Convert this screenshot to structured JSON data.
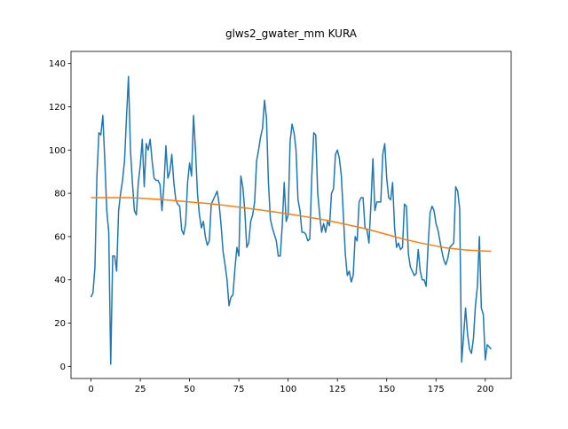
{
  "chart_data": {
    "type": "line",
    "title": "glws2_gwater_mm KURA",
    "xlim": [
      -10.15,
      213.15
    ],
    "ylim": [
      -5.6,
      145.6
    ],
    "xticks": [
      0,
      25,
      50,
      75,
      100,
      125,
      150,
      175,
      200
    ],
    "yticks": [
      0,
      20,
      40,
      60,
      80,
      100,
      120,
      140
    ],
    "series": [
      {
        "color": "#1f77b4",
        "x": [
          0,
          1,
          2,
          3,
          4,
          5,
          6,
          7,
          8,
          9,
          10,
          11,
          12,
          13,
          14,
          15,
          16,
          17,
          18,
          19,
          20,
          21,
          22,
          23,
          24,
          25,
          26,
          27,
          28,
          29,
          30,
          31,
          32,
          33,
          34,
          35,
          36,
          37,
          38,
          39,
          40,
          41,
          42,
          43,
          44,
          45,
          46,
          47,
          48,
          49,
          50,
          51,
          52,
          53,
          54,
          55,
          56,
          57,
          58,
          59,
          60,
          61,
          62,
          63,
          64,
          65,
          66,
          67,
          68,
          69,
          70,
          71,
          72,
          73,
          74,
          75,
          76,
          77,
          78,
          79,
          80,
          81,
          82,
          83,
          84,
          85,
          86,
          87,
          88,
          89,
          90,
          91,
          92,
          93,
          94,
          95,
          96,
          97,
          98,
          99,
          100,
          101,
          102,
          103,
          104,
          105,
          106,
          107,
          108,
          109,
          110,
          111,
          112,
          113,
          114,
          115,
          116,
          117,
          118,
          119,
          120,
          121,
          122,
          123,
          124,
          125,
          126,
          127,
          128,
          129,
          130,
          131,
          132,
          133,
          134,
          135,
          136,
          137,
          138,
          139,
          140,
          141,
          142,
          143,
          144,
          145,
          146,
          147,
          148,
          149,
          150,
          151,
          152,
          153,
          154,
          155,
          156,
          157,
          158,
          159,
          160,
          161,
          162,
          163,
          164,
          165,
          166,
          167,
          168,
          169,
          170,
          171,
          172,
          173,
          174,
          175,
          176,
          177,
          178,
          179,
          180,
          181,
          182,
          183,
          184,
          185,
          186,
          187,
          188,
          189,
          190,
          191,
          192,
          193,
          194,
          195,
          196,
          197,
          198,
          199,
          200,
          201,
          202,
          203
        ],
        "values": [
          32,
          34,
          46,
          88,
          108,
          107,
          116,
          95,
          72,
          62,
          1,
          51,
          51,
          44,
          72,
          80,
          86,
          95,
          115,
          134,
          100,
          85,
          72,
          70,
          85,
          93,
          105,
          83,
          103,
          100,
          105,
          95,
          87,
          86,
          86,
          84,
          72,
          84,
          102,
          87,
          90,
          98,
          85,
          77,
          75,
          74,
          63,
          61,
          66,
          85,
          94,
          88,
          116,
          100,
          80,
          70,
          64,
          67,
          60,
          56,
          58,
          75,
          77,
          79,
          81,
          75,
          65,
          53,
          47,
          40,
          28,
          32,
          33,
          45,
          55,
          51,
          88,
          83,
          72,
          55,
          57,
          67,
          70,
          76,
          95,
          100,
          106,
          110,
          123,
          115,
          85,
          68,
          64,
          61,
          58,
          51,
          51,
          65,
          85,
          67,
          70,
          104,
          112,
          108,
          100,
          77,
          72,
          62,
          62,
          61,
          58,
          59,
          88,
          108,
          107,
          80,
          70,
          62,
          66,
          62,
          67,
          65,
          80,
          82,
          98,
          100,
          96,
          88,
          70,
          52,
          42,
          44,
          39,
          42,
          60,
          58,
          76,
          78,
          78,
          64,
          63,
          57,
          75,
          96,
          72,
          76,
          76,
          76,
          98,
          103,
          87,
          78,
          77,
          85,
          64,
          55,
          57,
          54,
          55,
          75,
          74,
          52,
          46,
          44,
          42,
          43,
          54,
          44,
          40,
          40,
          37,
          56,
          71,
          74,
          72,
          66,
          63,
          58,
          53,
          49,
          47,
          50,
          55,
          56,
          57,
          83,
          81,
          73,
          2,
          14,
          27,
          15,
          8,
          6,
          13,
          28,
          37,
          60,
          27,
          24,
          3,
          10,
          9,
          8
        ]
      },
      {
        "color": "#ff7f0e",
        "x": [
          0,
          10,
          20,
          30,
          40,
          50,
          60,
          70,
          80,
          90,
          100,
          110,
          120,
          130,
          140,
          150,
          160,
          170,
          180,
          190,
          200,
          203
        ],
        "values": [
          78,
          78,
          78,
          77.5,
          76.8,
          76,
          75.2,
          74.2,
          73,
          71.8,
          70.5,
          69,
          67.5,
          65.5,
          63.5,
          61,
          58.5,
          56.5,
          54.8,
          53.8,
          53.3,
          53.2
        ]
      }
    ]
  }
}
